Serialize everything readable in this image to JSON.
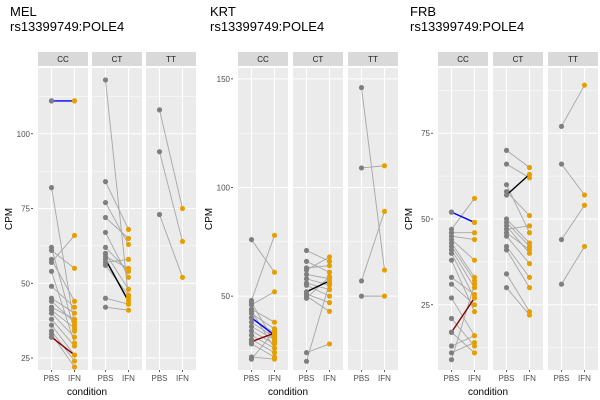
{
  "chart_data": [
    {
      "type": "scatter",
      "title": "MEL",
      "subtitle": "rs13399749:POLE4",
      "xlabel": "condition",
      "ylabel": "CPM",
      "ylim": [
        21,
        122
      ],
      "yticks": [
        25,
        50,
        75,
        100
      ],
      "categories": [
        "PBS",
        "IFN"
      ],
      "panels": [
        {
          "label": "CC",
          "pairs": [
            [
              111,
              111
            ],
            [
              82,
              36
            ],
            [
              62,
              34
            ],
            [
              58,
              44
            ],
            [
              54,
              30
            ],
            [
              49,
              42
            ],
            [
              45,
              40
            ],
            [
              42,
              38
            ],
            [
              40,
              32
            ],
            [
              38,
              29
            ],
            [
              36,
              26
            ],
            [
              34,
              24
            ],
            [
              33,
              22
            ],
            [
              61,
              55
            ],
            [
              57,
              66
            ],
            [
              44,
              37
            ],
            [
              41,
              35
            ],
            [
              32,
              26
            ]
          ],
          "highlights": [
            {
              "pbs": 111,
              "ifn": 111,
              "color": "#0000ff"
            },
            {
              "pbs": 32,
              "ifn": 26,
              "color": "#8b0000"
            }
          ]
        },
        {
          "label": "CT",
          "pairs": [
            [
              118,
              45
            ],
            [
              84,
              68
            ],
            [
              77,
              63
            ],
            [
              72,
              65
            ],
            [
              67,
              52
            ],
            [
              62,
              54
            ],
            [
              60,
              48
            ],
            [
              59,
              55
            ],
            [
              56,
              46
            ],
            [
              45,
              43
            ],
            [
              42,
              41
            ],
            [
              57,
              58
            ]
          ],
          "highlights": [
            {
              "pbs": 58,
              "ifn": 44,
              "color": "#000000"
            }
          ]
        },
        {
          "label": "TT",
          "pairs": [
            [
              108,
              75
            ],
            [
              94,
              64
            ],
            [
              73,
              52
            ]
          ],
          "highlights": []
        }
      ]
    },
    {
      "type": "scatter",
      "title": "KRT",
      "subtitle": "rs13399749:POLE4",
      "xlabel": "condition",
      "ylabel": "CPM",
      "ylim": [
        16,
        155
      ],
      "yticks": [
        50,
        100,
        150
      ],
      "categories": [
        "PBS",
        "IFN"
      ],
      "panels": [
        {
          "label": "CC",
          "pairs": [
            [
              76,
              61
            ],
            [
              48,
              78
            ],
            [
              46,
              52
            ],
            [
              44,
              38
            ],
            [
              42,
              35
            ],
            [
              40,
              33
            ],
            [
              38,
              31
            ],
            [
              36,
              30
            ],
            [
              34,
              28
            ],
            [
              32,
              26
            ],
            [
              47,
              29
            ],
            [
              30,
              24
            ],
            [
              28,
              22
            ],
            [
              22,
              21
            ],
            [
              21,
              34
            ],
            [
              43,
              26
            ]
          ],
          "highlights": [
            {
              "pbs": 40,
              "ifn": 32,
              "color": "#0000ff"
            },
            {
              "pbs": 29,
              "ifn": 33,
              "color": "#8b0000"
            }
          ]
        },
        {
          "label": "CT",
          "pairs": [
            [
              71,
              66
            ],
            [
              66,
              61
            ],
            [
              63,
              64
            ],
            [
              62,
              68
            ],
            [
              60,
              58
            ],
            [
              58,
              55
            ],
            [
              56,
              53
            ],
            [
              55,
              50
            ],
            [
              51,
              47
            ],
            [
              50,
              43
            ],
            [
              24,
              28
            ],
            [
              20,
              56
            ],
            [
              49,
              59
            ]
          ],
          "highlights": [
            {
              "pbs": 52,
              "ifn": 57,
              "color": "#000000"
            }
          ]
        },
        {
          "label": "TT",
          "pairs": [
            [
              146,
              62
            ],
            [
              109,
              110
            ],
            [
              57,
              89
            ],
            [
              50,
              50
            ]
          ],
          "highlights": []
        }
      ]
    },
    {
      "type": "scatter",
      "title": "FRB",
      "subtitle": "rs13399749:POLE4",
      "xlabel": "condition",
      "ylabel": "CPM",
      "ylim": [
        6,
        94
      ],
      "yticks": [
        25,
        50,
        75
      ],
      "categories": [
        "PBS",
        "IFN"
      ],
      "panels": [
        {
          "label": "CC",
          "pairs": [
            [
              52,
              49
            ],
            [
              47,
              56
            ],
            [
              46,
              46
            ],
            [
              45,
              44
            ],
            [
              44,
              38
            ],
            [
              43,
              33
            ],
            [
              42,
              32
            ],
            [
              41,
              30
            ],
            [
              40,
              27
            ],
            [
              38,
              23
            ],
            [
              33,
              28
            ],
            [
              31,
              25
            ],
            [
              27,
              16
            ],
            [
              21,
              13
            ],
            [
              17,
              11
            ],
            [
              13,
              16
            ],
            [
              11,
              14
            ],
            [
              9,
              31
            ]
          ],
          "highlights": [
            {
              "pbs": 52,
              "ifn": 49,
              "color": "#0000ff"
            },
            {
              "pbs": 17,
              "ifn": 27,
              "color": "#8b0000"
            }
          ]
        },
        {
          "label": "CT",
          "pairs": [
            [
              70,
              65
            ],
            [
              66,
              62
            ],
            [
              60,
              46
            ],
            [
              58,
              51
            ],
            [
              50,
              43
            ],
            [
              49,
              42
            ],
            [
              48,
              40
            ],
            [
              46,
              41
            ],
            [
              45,
              37
            ],
            [
              42,
              33
            ],
            [
              41,
              30
            ],
            [
              34,
              23
            ],
            [
              30,
              22
            ],
            [
              47,
              48
            ]
          ],
          "highlights": [
            {
              "pbs": 57,
              "ifn": 63,
              "color": "#000000"
            }
          ]
        },
        {
          "label": "TT",
          "pairs": [
            [
              77,
              89
            ],
            [
              66,
              57
            ],
            [
              44,
              54
            ],
            [
              31,
              42
            ]
          ],
          "highlights": []
        }
      ]
    }
  ],
  "colors": {
    "pbs_point": "#7f7f7f",
    "ifn_point": "#e69f00",
    "connector": "#a6a6a6",
    "panel_background": "#ebebeb",
    "strip_background": "#d9d9d9",
    "grid_major": "#ffffff"
  }
}
